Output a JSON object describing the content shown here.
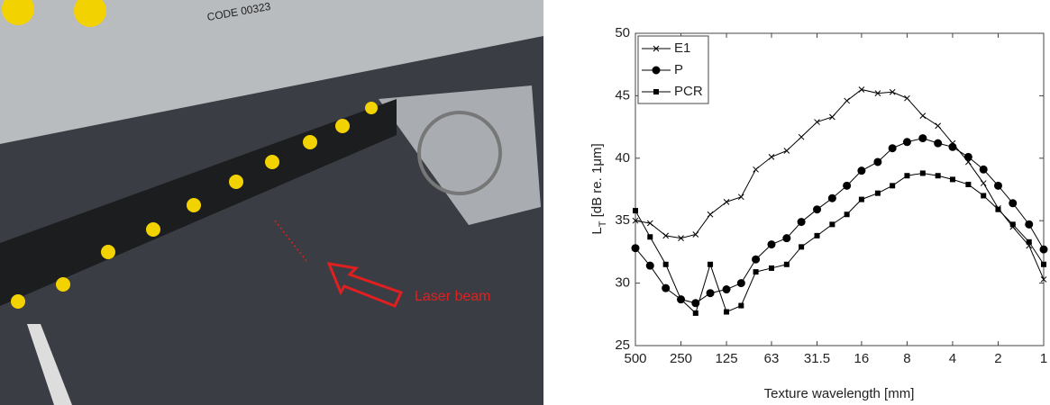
{
  "photo": {
    "label": "CODE 00323",
    "annotation": "Laser beam"
  },
  "chart_data": {
    "type": "line",
    "xlabel": "Texture wavelength [mm]",
    "ylabel": {
      "symbol": "L",
      "subscript": "T",
      "unit": " [dB re. 1μm]"
    },
    "x": [
      500,
      400,
      315,
      250,
      200,
      160,
      125,
      100,
      80,
      63,
      50,
      40,
      31.5,
      25,
      20,
      16,
      12.5,
      10,
      8,
      6.3,
      5,
      4,
      3.15,
      2.5,
      2,
      1.6,
      1.25,
      1
    ],
    "series": [
      {
        "name": "E1",
        "color": "#000000",
        "marker": "x",
        "values": [
          35.0,
          34.8,
          33.8,
          33.6,
          33.9,
          35.5,
          36.5,
          36.9,
          39.1,
          40.1,
          40.6,
          41.7,
          42.9,
          43.3,
          44.6,
          45.5,
          45.2,
          45.3,
          44.8,
          43.4,
          42.6,
          41.2,
          39.7,
          38.0,
          36.0,
          34.5,
          33.0,
          30.3
        ]
      },
      {
        "name": "P",
        "color": "#000000",
        "marker": "circle",
        "values": [
          32.8,
          31.4,
          29.6,
          28.7,
          28.4,
          29.2,
          29.5,
          30.0,
          31.9,
          33.1,
          33.6,
          34.9,
          35.9,
          36.8,
          37.8,
          39.0,
          39.7,
          40.8,
          41.3,
          41.6,
          41.2,
          40.9,
          40.1,
          39.1,
          37.8,
          36.4,
          34.7,
          32.7
        ]
      },
      {
        "name": "PCR",
        "color": "#000000",
        "marker": "square",
        "values": [
          35.8,
          33.7,
          31.5,
          28.7,
          27.6,
          31.5,
          27.7,
          28.2,
          30.9,
          31.2,
          31.5,
          32.9,
          33.8,
          34.7,
          35.5,
          36.7,
          37.2,
          37.8,
          38.6,
          38.8,
          38.6,
          38.3,
          37.9,
          37.0,
          35.9,
          34.7,
          33.3,
          31.5
        ]
      }
    ],
    "xlim": [
      500,
      1
    ],
    "xticks": [
      500,
      250,
      125,
      63,
      31.5,
      16,
      8,
      4,
      2,
      1
    ],
    "log_x": true,
    "ylim": [
      25,
      50
    ],
    "yticks": [
      25,
      30,
      35,
      40,
      45,
      50
    ],
    "grid": false,
    "legend": "upper left"
  }
}
